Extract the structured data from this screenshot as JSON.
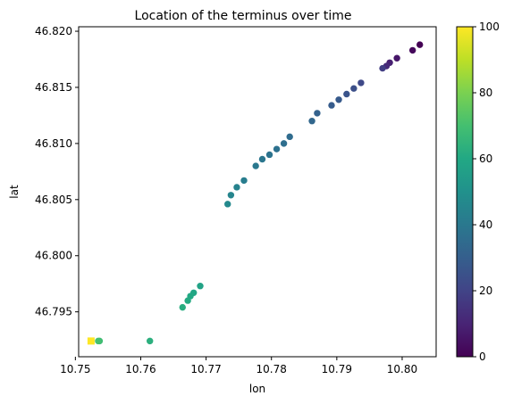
{
  "chart_data": {
    "type": "scatter",
    "title": "Location of the terminus over time",
    "xlabel": "lon",
    "ylabel": "lat",
    "xlim": [
      10.7505,
      10.8052
    ],
    "ylim": [
      46.791,
      46.8204
    ],
    "xticks": [
      "10.75",
      "10.76",
      "10.77",
      "10.78",
      "10.79",
      "10.80"
    ],
    "xtick_values": [
      10.75,
      10.76,
      10.77,
      10.78,
      10.79,
      10.8
    ],
    "yticks": [
      "46.795",
      "46.800",
      "46.805",
      "46.810",
      "46.815",
      "46.820"
    ],
    "ytick_values": [
      46.795,
      46.8,
      46.805,
      46.81,
      46.815,
      46.82
    ],
    "colorbar": {
      "colormap": "viridis",
      "range": [
        0,
        100
      ],
      "ticks": [
        "0",
        "20",
        "40",
        "60",
        "80",
        "100"
      ],
      "tick_values": [
        0,
        20,
        40,
        60,
        80,
        100
      ]
    },
    "grid": false,
    "points": [
      {
        "x": 10.8027,
        "y": 46.8188,
        "c": 0
      },
      {
        "x": 10.8016,
        "y": 46.8183,
        "c": 2
      },
      {
        "x": 10.7992,
        "y": 46.8176,
        "c": 6
      },
      {
        "x": 10.7981,
        "y": 46.8172,
        "c": 9
      },
      {
        "x": 10.7976,
        "y": 46.8169,
        "c": 12
      },
      {
        "x": 10.797,
        "y": 46.8167,
        "c": 18
      },
      {
        "x": 10.7937,
        "y": 46.8154,
        "c": 22
      },
      {
        "x": 10.7926,
        "y": 46.8149,
        "c": 24
      },
      {
        "x": 10.7915,
        "y": 46.8144,
        "c": 26
      },
      {
        "x": 10.7903,
        "y": 46.8139,
        "c": 28
      },
      {
        "x": 10.7892,
        "y": 46.8134,
        "c": 29
      },
      {
        "x": 10.787,
        "y": 46.8127,
        "c": 31
      },
      {
        "x": 10.7862,
        "y": 46.812,
        "c": 33
      },
      {
        "x": 10.7828,
        "y": 46.8106,
        "c": 35
      },
      {
        "x": 10.7819,
        "y": 46.81,
        "c": 36
      },
      {
        "x": 10.7808,
        "y": 46.8095,
        "c": 37
      },
      {
        "x": 10.7797,
        "y": 46.809,
        "c": 38
      },
      {
        "x": 10.7786,
        "y": 46.8086,
        "c": 39
      },
      {
        "x": 10.7776,
        "y": 46.808,
        "c": 40
      },
      {
        "x": 10.7758,
        "y": 46.8067,
        "c": 42
      },
      {
        "x": 10.7747,
        "y": 46.8061,
        "c": 44
      },
      {
        "x": 10.7738,
        "y": 46.8054,
        "c": 45
      },
      {
        "x": 10.7733,
        "y": 46.8046,
        "c": 47
      },
      {
        "x": 10.7691,
        "y": 46.7973,
        "c": 58
      },
      {
        "x": 10.7681,
        "y": 46.7967,
        "c": 59
      },
      {
        "x": 10.7676,
        "y": 46.7964,
        "c": 60
      },
      {
        "x": 10.7672,
        "y": 46.796,
        "c": 61
      },
      {
        "x": 10.7664,
        "y": 46.7954,
        "c": 62
      },
      {
        "x": 10.7614,
        "y": 46.7924,
        "c": 63
      },
      {
        "x": 10.7537,
        "y": 46.7924,
        "c": 68
      },
      {
        "x": 10.7535,
        "y": 46.7924,
        "c": 70
      },
      {
        "x": 10.7524,
        "y": 46.7924,
        "c": 100
      }
    ]
  }
}
